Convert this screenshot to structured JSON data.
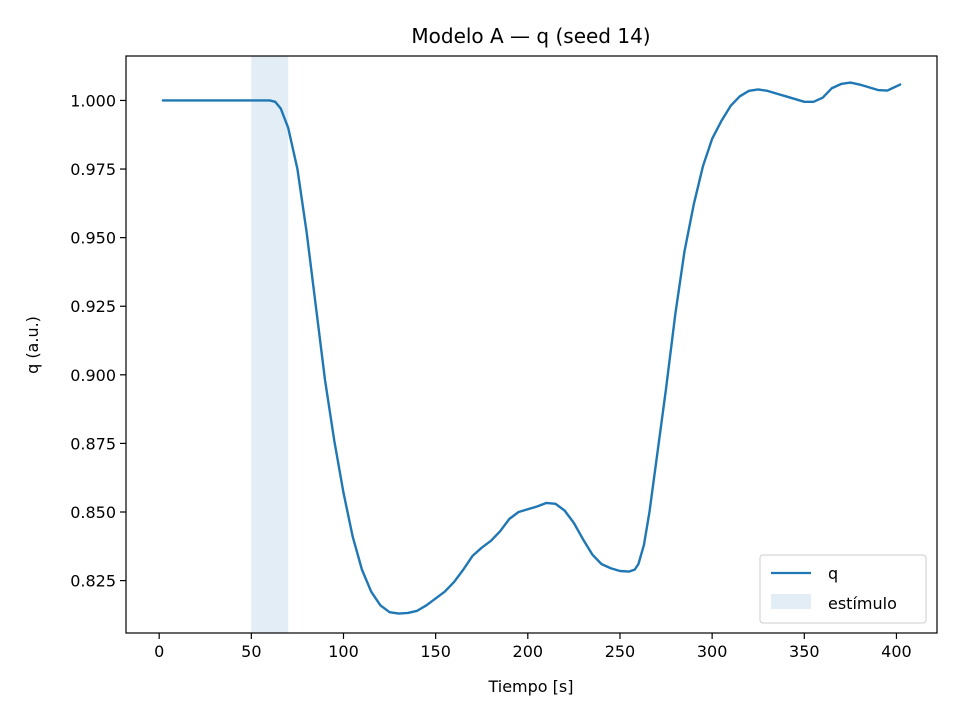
{
  "chart_data": {
    "type": "line",
    "title": "Modelo A — q (seed 14)",
    "xlabel": "Tiempo [s]",
    "ylabel": "q (a.u.)",
    "xlim": [
      -18,
      422
    ],
    "ylim": [
      0.8059,
      1.0162
    ],
    "xticks": [
      0,
      50,
      100,
      150,
      200,
      250,
      300,
      350,
      400
    ],
    "xtick_labels": [
      "0",
      "50",
      "100",
      "150",
      "200",
      "250",
      "300",
      "350",
      "400"
    ],
    "yticks": [
      0.825,
      0.85,
      0.875,
      0.9,
      0.925,
      0.95,
      0.975,
      1.0
    ],
    "ytick_labels": [
      "0.825",
      "0.850",
      "0.875",
      "0.900",
      "0.925",
      "0.950",
      "0.975",
      "1.000"
    ],
    "grid": false,
    "legend_position": "lower-right",
    "series": [
      {
        "name": "q",
        "color": "#1f77b4",
        "x": [
          2,
          20,
          40,
          55,
          60,
          63,
          66,
          70,
          75,
          80,
          85,
          90,
          95,
          100,
          105,
          110,
          115,
          120,
          125,
          130,
          135,
          140,
          145,
          150,
          155,
          160,
          165,
          170,
          175,
          180,
          185,
          190,
          195,
          200,
          205,
          210,
          215,
          220,
          225,
          230,
          235,
          240,
          245,
          250,
          255,
          258,
          260,
          263,
          266,
          270,
          275,
          280,
          285,
          290,
          295,
          300,
          305,
          310,
          315,
          320,
          325,
          330,
          335,
          340,
          345,
          350,
          355,
          360,
          365,
          370,
          375,
          380,
          385,
          390,
          395,
          402
        ],
        "y": [
          1.0,
          1.0,
          1.0,
          1.0,
          1.0,
          0.9995,
          0.997,
          0.99,
          0.975,
          0.952,
          0.925,
          0.898,
          0.876,
          0.857,
          0.841,
          0.829,
          0.821,
          0.816,
          0.8135,
          0.813,
          0.8132,
          0.814,
          0.816,
          0.8185,
          0.821,
          0.8245,
          0.829,
          0.834,
          0.837,
          0.8395,
          0.843,
          0.8475,
          0.85,
          0.851,
          0.852,
          0.8533,
          0.853,
          0.8505,
          0.846,
          0.84,
          0.8345,
          0.831,
          0.8295,
          0.8285,
          0.8283,
          0.829,
          0.831,
          0.838,
          0.85,
          0.87,
          0.895,
          0.922,
          0.945,
          0.962,
          0.976,
          0.986,
          0.9925,
          0.998,
          1.0015,
          1.0035,
          1.004,
          1.0035,
          1.0025,
          1.0015,
          1.0005,
          0.9995,
          0.9995,
          1.001,
          1.0045,
          1.006,
          1.0065,
          1.0058,
          1.0048,
          1.0038,
          1.0036,
          1.0058
        ]
      }
    ],
    "spans": [
      {
        "name": "estímulo",
        "x_start": 50,
        "x_end": 70,
        "color": "#1f77b4",
        "opacity": 0.13
      }
    ]
  }
}
